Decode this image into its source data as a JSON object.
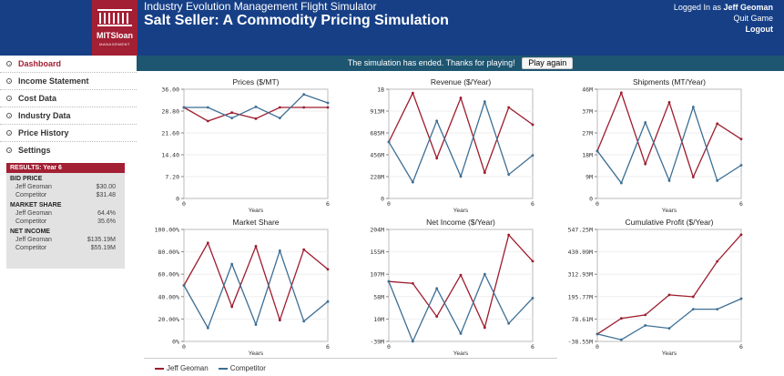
{
  "header": {
    "logo_word": "MITSloan",
    "logo_sub": "MANAGEMENT",
    "app_title": "Industry Evolution Management Flight Simulator",
    "sim_title": "Salt Seller: A Commodity Pricing Simulation",
    "logged_in_prefix": "Logged In as",
    "user_name": "Jeff Geoman",
    "quit_label": "Quit Game",
    "logout_label": "Logout"
  },
  "sidebar": {
    "items": [
      {
        "label": "Dashboard",
        "active": true
      },
      {
        "label": "Income Statement"
      },
      {
        "label": "Cost Data"
      },
      {
        "label": "Industry Data"
      },
      {
        "label": "Price History"
      },
      {
        "label": "Settings"
      }
    ]
  },
  "results": {
    "title": "RESULTS: Year 6",
    "bid_price_label": "BID PRICE",
    "market_share_label": "MARKET SHARE",
    "net_income_label": "NET INCOME",
    "player_name": "Jeff Geoman",
    "competitor_name": "Competitor",
    "bid_price_player": "$30.00",
    "bid_price_competitor": "$31.48",
    "share_player": "64.4%",
    "share_competitor": "35.6%",
    "income_player": "$135.19M",
    "income_competitor": "$55.19M"
  },
  "banner": {
    "message": "The simulation has ended. Thanks for playing!",
    "play_again_label": "Play again"
  },
  "legend": {
    "player": "Jeff Geoman",
    "competitor": "Competitor"
  },
  "colors": {
    "header_blue": "#163f86",
    "brand_red": "#a31f34",
    "player": "#9e1c2e",
    "competitor": "#3c6e94"
  },
  "chart_data": [
    {
      "type": "line",
      "title": "Prices ($/MT)",
      "xlabel": "Years",
      "x": [
        0,
        1,
        2,
        3,
        4,
        5,
        6
      ],
      "ylim": [
        0,
        36
      ],
      "yticks": [
        "36.00",
        "28.80",
        "21.60",
        "14.40",
        "7.20",
        "0"
      ],
      "xticks": [
        "0",
        "6"
      ],
      "series": [
        {
          "name": "Jeff Geoman",
          "values": [
            30,
            25.5,
            28.3,
            26.3,
            30,
            30,
            30
          ]
        },
        {
          "name": "Competitor",
          "values": [
            30,
            30,
            26.5,
            30.2,
            26.5,
            34.3,
            31.5
          ]
        }
      ]
    },
    {
      "type": "line",
      "title": "Revenue ($/Year)",
      "xlabel": "Years",
      "x": [
        0,
        1,
        2,
        3,
        4,
        5,
        6
      ],
      "ylim": [
        0,
        1140
      ],
      "yticks": [
        "1B",
        "913M",
        "685M",
        "456M",
        "228M",
        "0"
      ],
      "xticks": [
        "0",
        "6"
      ],
      "series": [
        {
          "name": "Jeff Geoman",
          "values": [
            590,
            1100,
            420,
            1050,
            270,
            950,
            770
          ]
        },
        {
          "name": "Competitor",
          "values": [
            590,
            170,
            810,
            230,
            1010,
            250,
            450
          ]
        }
      ]
    },
    {
      "type": "line",
      "title": "Shipments (MT/Year)",
      "xlabel": "Years",
      "x": [
        0,
        1,
        2,
        3,
        4,
        5,
        6
      ],
      "ylim": [
        0,
        46
      ],
      "yticks": [
        "46M",
        "37M",
        "27M",
        "18M",
        "9M",
        "0"
      ],
      "xticks": [
        "0",
        "6"
      ],
      "series": [
        {
          "name": "Jeff Geoman",
          "values": [
            20,
            44.5,
            14.5,
            40.5,
            9,
            31.5,
            25
          ]
        },
        {
          "name": "Competitor",
          "values": [
            20,
            6.5,
            32,
            7.5,
            38.5,
            7.5,
            14
          ]
        }
      ]
    },
    {
      "type": "line",
      "title": "Market Share",
      "xlabel": "Years",
      "x": [
        0,
        1,
        2,
        3,
        4,
        5,
        6
      ],
      "ylim": [
        0,
        100
      ],
      "yticks": [
        "100.00%",
        "80.00%",
        "60.00%",
        "40.00%",
        "20.00%",
        "0%"
      ],
      "xticks": [
        "0",
        "6"
      ],
      "series": [
        {
          "name": "Jeff Geoman",
          "values": [
            50,
            88,
            31,
            85,
            19,
            82,
            64.4
          ]
        },
        {
          "name": "Competitor",
          "values": [
            50,
            12,
            69,
            15,
            81,
            18,
            35.6
          ]
        }
      ]
    },
    {
      "type": "line",
      "title": "Net Income ($/Year)",
      "xlabel": "Years",
      "x": [
        0,
        1,
        2,
        3,
        4,
        5,
        6
      ],
      "ylim": [
        -39,
        204
      ],
      "yticks": [
        "204M",
        "155M",
        "107M",
        "58M",
        "10M",
        "-39M"
      ],
      "xticks": [
        "0",
        "6"
      ],
      "series": [
        {
          "name": "Jeff Geoman",
          "values": [
            91,
            87,
            15,
            105,
            -9,
            192,
            135
          ]
        },
        {
          "name": "Competitor",
          "values": [
            91,
            -39,
            76,
            -22,
            107,
            0,
            55
          ]
        }
      ]
    },
    {
      "type": "line",
      "title": "Cumulative Profit ($/Year)",
      "xlabel": "Years",
      "x": [
        0,
        1,
        2,
        3,
        4,
        5,
        6
      ],
      "ylim": [
        -38.55,
        547.25
      ],
      "yticks": [
        "547.25M",
        "430.09M",
        "312.93M",
        "195.77M",
        "78.61M",
        "-38.55M"
      ],
      "xticks": [
        "0",
        "6"
      ],
      "series": [
        {
          "name": "Jeff Geoman",
          "values": [
            0,
            82,
            100,
            205,
            195,
            380,
            520
          ]
        },
        {
          "name": "Competitor",
          "values": [
            0,
            -30,
            45,
            30,
            130,
            130,
            185
          ]
        }
      ]
    }
  ]
}
